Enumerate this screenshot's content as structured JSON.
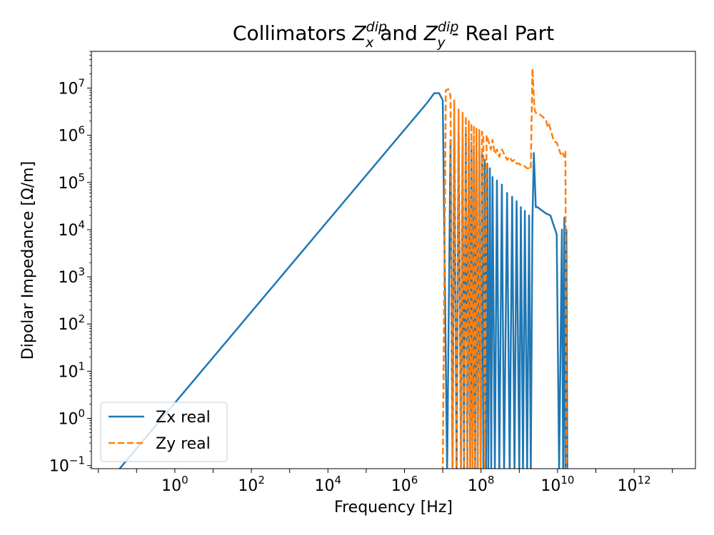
{
  "chart_data": {
    "type": "line",
    "title": {
      "prefix": "Collimators ",
      "z1": "Z",
      "z1_sup": "dip",
      "z1_sub": "x",
      "middle": " and ",
      "z2": "Z",
      "z2_sup": "dip",
      "z2_sub": "y",
      "suffix": " - Real Part"
    },
    "xlabel": "Frequency [Hz]",
    "ylabel": "Dipolar Impedance [Ω/m]",
    "xscale": "log",
    "yscale": "log",
    "xlim": [
      0.0066,
      40000000000000
    ],
    "ylim": [
      0.086,
      60000000
    ],
    "x_ticks": [
      {
        "value": 1,
        "base": "10",
        "exp": "0"
      },
      {
        "value": 100,
        "base": "10",
        "exp": "2"
      },
      {
        "value": 10000,
        "base": "10",
        "exp": "4"
      },
      {
        "value": 1000000,
        "base": "10",
        "exp": "6"
      },
      {
        "value": 100000000,
        "base": "10",
        "exp": "8"
      },
      {
        "value": 10000000000,
        "base": "10",
        "exp": "10"
      },
      {
        "value": 1000000000000,
        "base": "10",
        "exp": "12"
      }
    ],
    "y_ticks": [
      {
        "value": 0.1,
        "base": "10",
        "exp": "−1"
      },
      {
        "value": 1,
        "base": "10",
        "exp": "0"
      },
      {
        "value": 10,
        "base": "10",
        "exp": "1"
      },
      {
        "value": 100,
        "base": "10",
        "exp": "2"
      },
      {
        "value": 1000,
        "base": "10",
        "exp": "3"
      },
      {
        "value": 10000,
        "base": "10",
        "exp": "4"
      },
      {
        "value": 100000,
        "base": "10",
        "exp": "5"
      },
      {
        "value": 1000000,
        "base": "10",
        "exp": "6"
      },
      {
        "value": 10000000,
        "base": "10",
        "exp": "7"
      }
    ],
    "grid": false,
    "legend_position": "lower-left",
    "series": [
      {
        "name": "Zx real",
        "color": "#1f77b4",
        "style": "solid",
        "x": [
          0.01,
          4000000,
          6000000,
          8000000,
          10000000,
          13000000,
          16000000,
          18000000,
          20000000,
          23000000,
          26000000,
          30000000,
          33000000,
          36000000,
          40000000,
          44000000,
          48000000,
          52000000,
          56000000,
          60000000,
          65000000,
          70000000,
          76000000,
          82000000,
          90000000,
          98000000,
          106000000,
          115000000,
          125000000,
          135000000,
          145000000,
          155000000,
          170000000,
          185000000,
          200000000,
          230000000,
          260000000,
          300000000,
          350000000,
          400000000,
          480000000,
          560000000,
          650000000,
          750000000,
          850000000,
          1000000000,
          1100000000,
          1250000000,
          1400000000,
          1600000000,
          1800000000,
          2000000000,
          2200000000,
          2400000000,
          2700000000,
          3000000000,
          4000000000,
          5000000000,
          6500000000,
          8000000000,
          9500000000,
          11000000000,
          13000000000,
          14000000000,
          15000000000,
          16000000000,
          17000000000,
          18000000000
        ],
        "y": [
          0.025,
          5000000,
          7800000,
          7800000,
          5500000,
          0.07,
          800000,
          0.07,
          2000000,
          0.07,
          1200000,
          0.07,
          900000,
          0.07,
          1200000,
          0.07,
          800000,
          0.07,
          700000,
          0.07,
          600000,
          0.07,
          700000,
          0.07,
          500000,
          0.07,
          400000,
          0.07,
          300000,
          0.07,
          250000,
          0.07,
          200000,
          0.07,
          130000,
          0.07,
          110000,
          0.07,
          90000,
          0.07,
          60000,
          0.07,
          50000,
          0.07,
          40000,
          0.07,
          30000,
          0.07,
          25000,
          0.07,
          20000,
          0.07,
          15000,
          420000,
          30000,
          30000,
          25000,
          22000,
          20000,
          12000,
          8000,
          0.07,
          10000,
          0.07,
          18000,
          0.07,
          10000,
          0.07
        ]
      },
      {
        "name": "Zy real",
        "color": "#ff7f0e",
        "style": "dashed",
        "x": [
          10000000,
          12000000,
          14000000,
          16000000,
          18000000,
          20000000,
          23000000,
          26000000,
          30000000,
          33000000,
          36000000,
          40000000,
          44000000,
          48000000,
          52000000,
          56000000,
          60000000,
          65000000,
          70000000,
          76000000,
          82000000,
          90000000,
          98000000,
          106000000,
          115000000,
          125000000,
          140000000,
          160000000,
          180000000,
          200000000,
          230000000,
          260000000,
          300000000,
          350000000,
          400000000,
          480000000,
          560000000,
          650000000,
          750000000,
          850000000,
          1000000000,
          1100000000,
          1250000000,
          1400000000,
          1600000000,
          1800000000,
          2000000000,
          2200000000,
          2500000000,
          2700000000,
          3000000000,
          4000000000,
          5000000000,
          5500000000,
          6000000000,
          7000000000,
          8000000000,
          9500000000,
          11000000000,
          12000000000,
          13000000000,
          14000000000,
          15000000000,
          16000000000,
          17000000000
        ],
        "y": [
          0.07,
          9000000,
          9500000,
          7000000,
          0.07,
          5500000,
          0.07,
          3500000,
          0.07,
          3000000,
          0.07,
          2500000,
          0.07,
          2000000,
          0.07,
          1800000,
          0.07,
          1600000,
          0.07,
          1400000,
          0.07,
          1300000,
          0.07,
          1200000,
          900000,
          0.07,
          1000000,
          700000,
          500000,
          800000,
          400000,
          500000,
          350000,
          500000,
          400000,
          300000,
          350000,
          280000,
          300000,
          250000,
          250000,
          230000,
          220000,
          220000,
          200000,
          200000,
          190000,
          26000000,
          3500000,
          3000000,
          3000000,
          2500000,
          2100000,
          1500000,
          1700000,
          1100000,
          750000,
          700000,
          500000,
          400000,
          450000,
          400000,
          350000,
          450000,
          0.07
        ]
      }
    ]
  }
}
